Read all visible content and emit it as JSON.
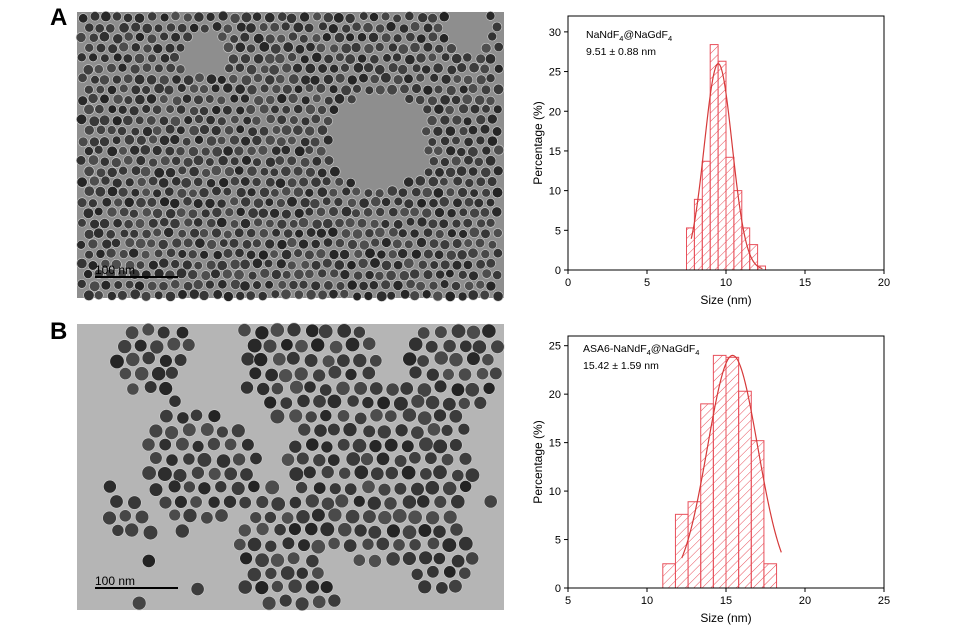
{
  "panels": [
    {
      "letter": "A",
      "scale_bar": "100 nm"
    },
    {
      "letter": "B",
      "scale_bar": "100 nm"
    }
  ],
  "colors": {
    "hist": "#e8505b",
    "fit": "#d63a3a",
    "micro_bg_a": "#8e8e8e",
    "micro_bg_b": "#b5b5b5",
    "particle": "#3a3a3a"
  },
  "chart_data": [
    {
      "type": "bar",
      "title": "",
      "annotation": {
        "sample_parts": [
          "NaNdF",
          "4",
          "@NaGdF",
          "4"
        ],
        "size": "9.51 ± 0.88 nm"
      },
      "xlabel": "Size (nm)",
      "ylabel": "Percentage (%)",
      "xlim": [
        0,
        20
      ],
      "ylim": [
        0,
        32
      ],
      "xticks": [
        0,
        5,
        10,
        15,
        20
      ],
      "yticks": [
        0,
        5,
        10,
        15,
        20,
        25,
        30
      ],
      "bin_width": 0.5,
      "bins": [
        7.5,
        8.0,
        8.5,
        9.0,
        9.5,
        10.0,
        10.5,
        11.0,
        11.5,
        12.0
      ],
      "values": [
        5.3,
        8.9,
        13.7,
        28.4,
        26.3,
        14.2,
        10.0,
        5.3,
        3.2,
        0.5
      ],
      "fit": {
        "mean": 9.51,
        "sd": 0.88,
        "amplitude": 26.0,
        "range": [
          7.8,
          12.3
        ]
      }
    },
    {
      "type": "bar",
      "title": "",
      "annotation": {
        "sample_parts": [
          "ASA6-NaNdF",
          "4",
          "@NaGdF",
          "4"
        ],
        "size": "15.42 ± 1.59 nm"
      },
      "xlabel": "Size (nm)",
      "ylabel": "Percentage (%)",
      "xlim": [
        5,
        25
      ],
      "ylim": [
        0,
        26
      ],
      "xticks": [
        5,
        10,
        15,
        20,
        25
      ],
      "yticks": [
        0,
        5,
        10,
        15,
        20,
        25
      ],
      "bin_width": 0.8,
      "bins": [
        11.0,
        11.8,
        12.6,
        13.4,
        14.2,
        15.0,
        15.8,
        16.6,
        17.4,
        18.2
      ],
      "values": [
        2.5,
        7.6,
        8.9,
        19.0,
        24.0,
        23.8,
        20.3,
        15.2,
        2.5,
        0.0
      ],
      "fit": {
        "mean": 15.42,
        "sd": 1.59,
        "amplitude": 24.0,
        "range": [
          12.2,
          18.5
        ]
      }
    }
  ]
}
